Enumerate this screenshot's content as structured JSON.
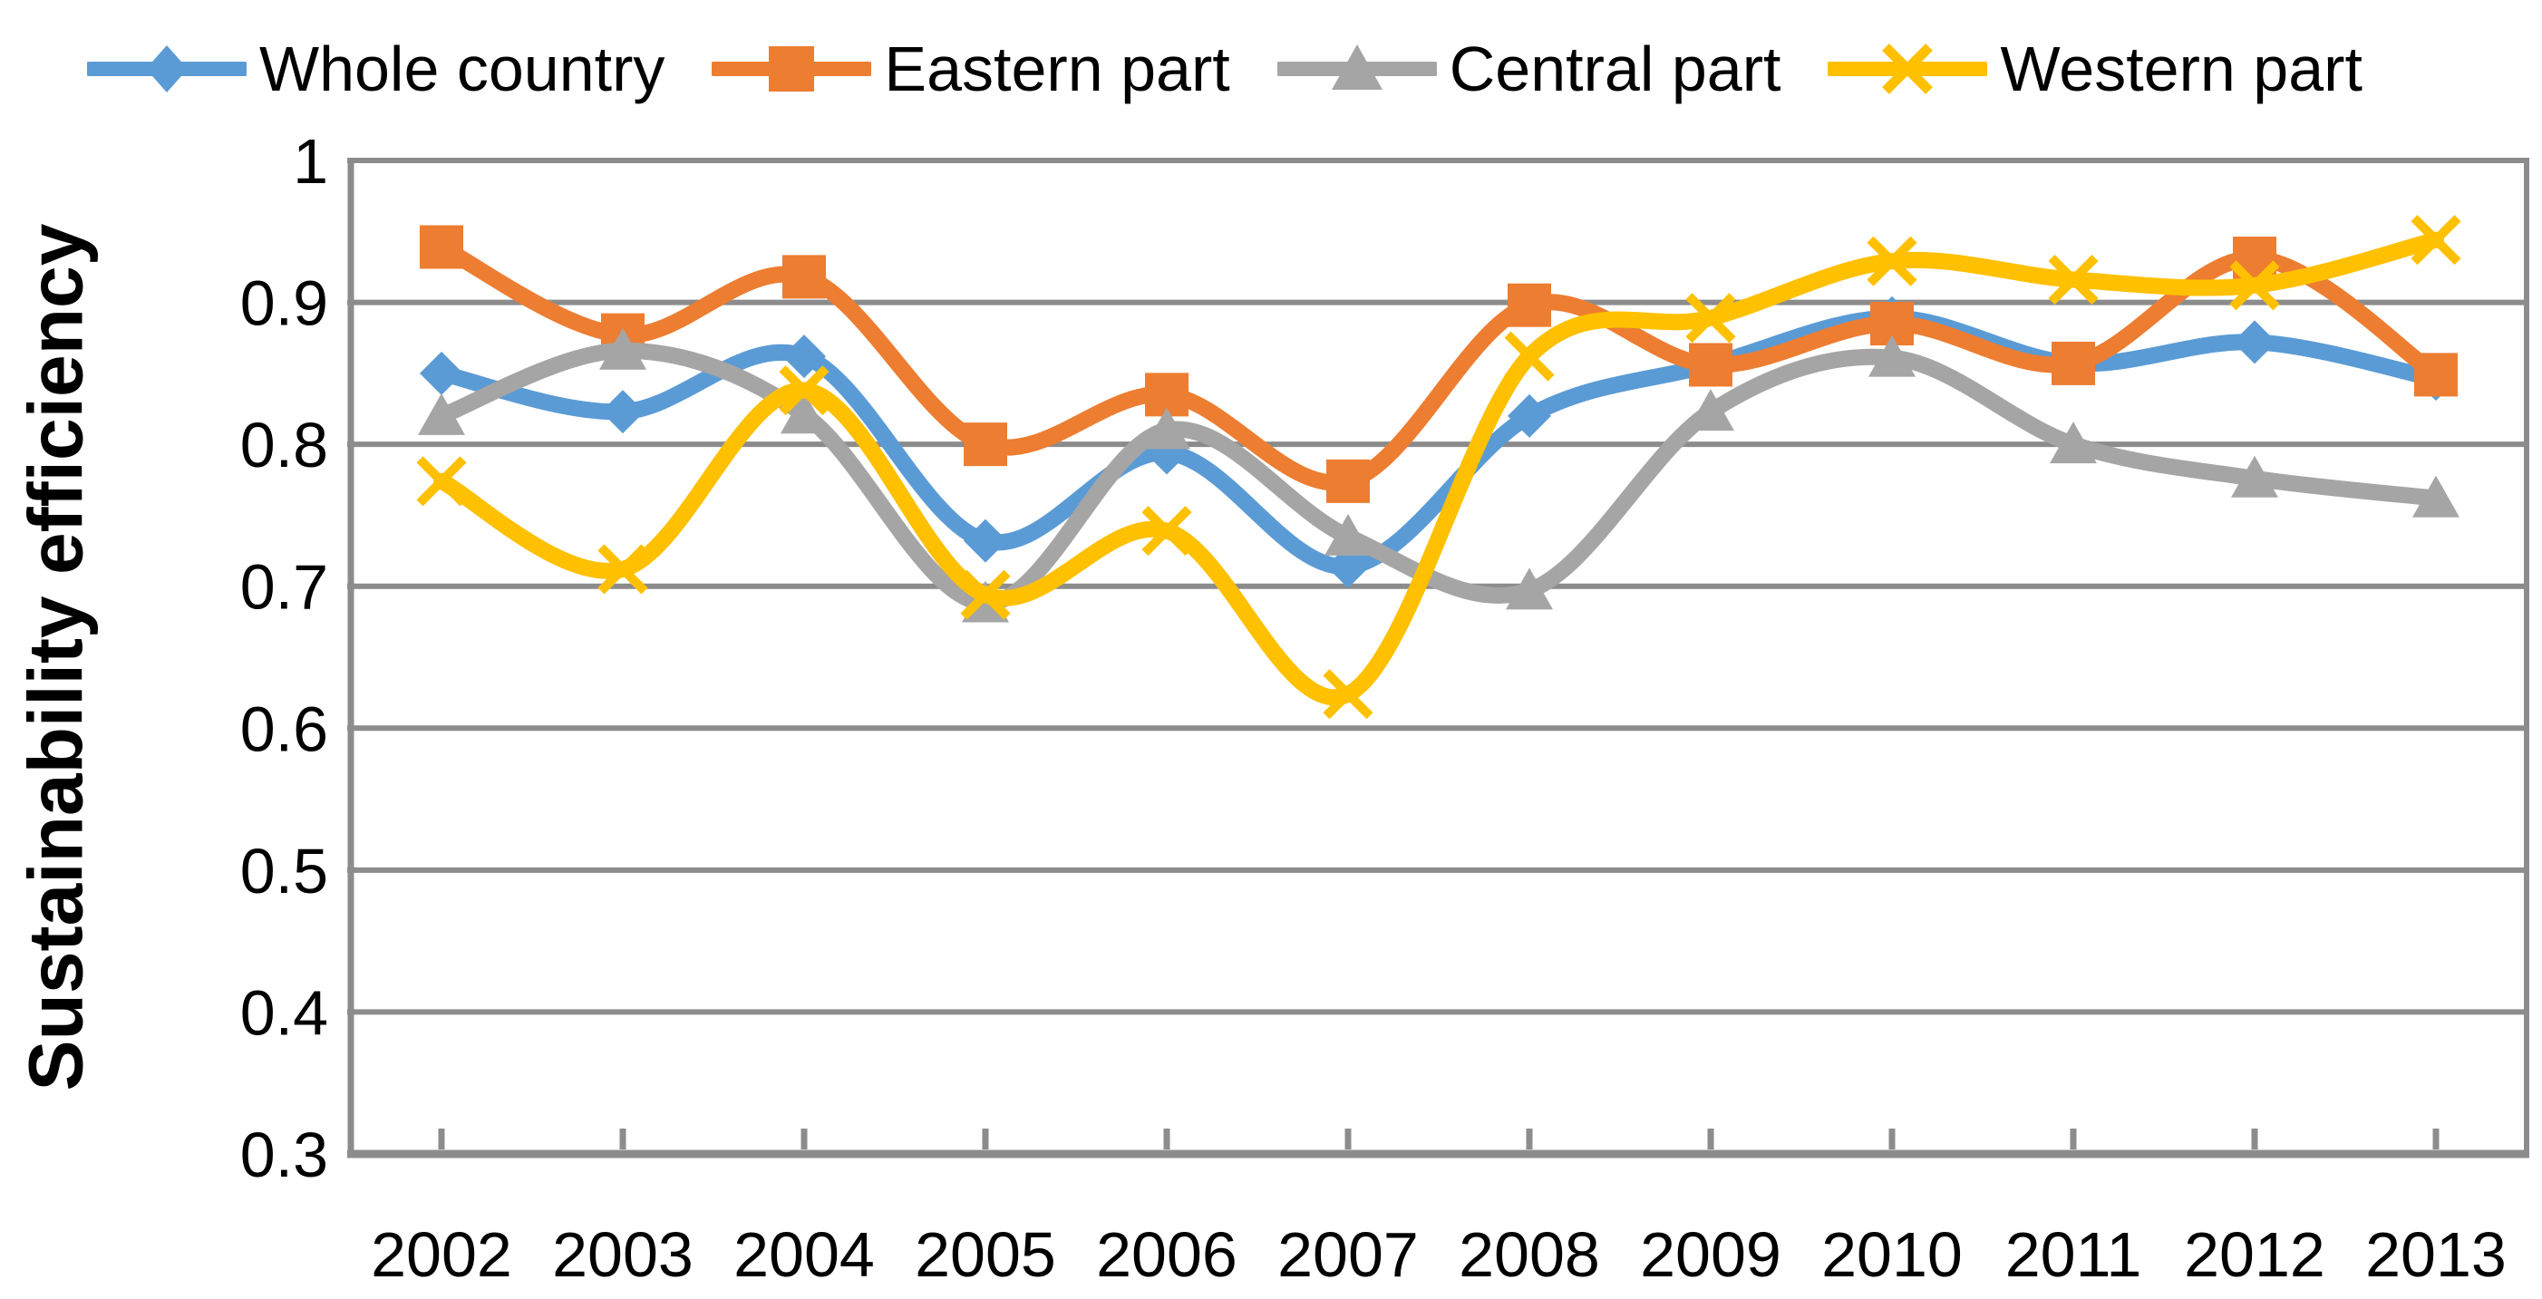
{
  "page": {
    "background": "#FFFFFF",
    "text_color": "#000000"
  },
  "chart_data": {
    "type": "line",
    "ylabel": "Sustainability efficiency",
    "xlabel": "",
    "categories": [
      "2002",
      "2003",
      "2004",
      "2005",
      "2006",
      "2007",
      "2008",
      "2009",
      "2010",
      "2011",
      "2012",
      "2013"
    ],
    "y_tick_labels": [
      "1",
      "0.9",
      "0.8",
      "0.7",
      "0.6",
      "0.5",
      "0.4",
      "0.3"
    ],
    "ylim": [
      0.3,
      1.0
    ],
    "grid": true,
    "smooth_lines": true,
    "legend_position": "top",
    "grid_color": "#8C8C8C",
    "axis_color": "#8C8C8C",
    "series": [
      {
        "name": "Whole country",
        "color": "#5B9BD5",
        "marker": "diamond",
        "values": [
          0.85,
          0.823,
          0.862,
          0.732,
          0.794,
          0.714,
          0.82,
          0.856,
          0.889,
          0.857,
          0.872,
          0.846
        ]
      },
      {
        "name": "Eastern part",
        "color": "#ED7D31",
        "marker": "square",
        "values": [
          0.939,
          0.877,
          0.918,
          0.8,
          0.835,
          0.774,
          0.898,
          0.856,
          0.885,
          0.857,
          0.931,
          0.849
        ]
      },
      {
        "name": "Central part",
        "color": "#A5A5A5",
        "marker": "triangle",
        "values": [
          0.82,
          0.866,
          0.821,
          0.688,
          0.81,
          0.735,
          0.697,
          0.823,
          0.861,
          0.8,
          0.776,
          0.762
        ]
      },
      {
        "name": "Western part",
        "color": "#FFC000",
        "marker": "x",
        "values": [
          0.774,
          0.712,
          0.838,
          0.694,
          0.739,
          0.624,
          0.862,
          0.889,
          0.929,
          0.916,
          0.912,
          0.944
        ]
      }
    ]
  }
}
